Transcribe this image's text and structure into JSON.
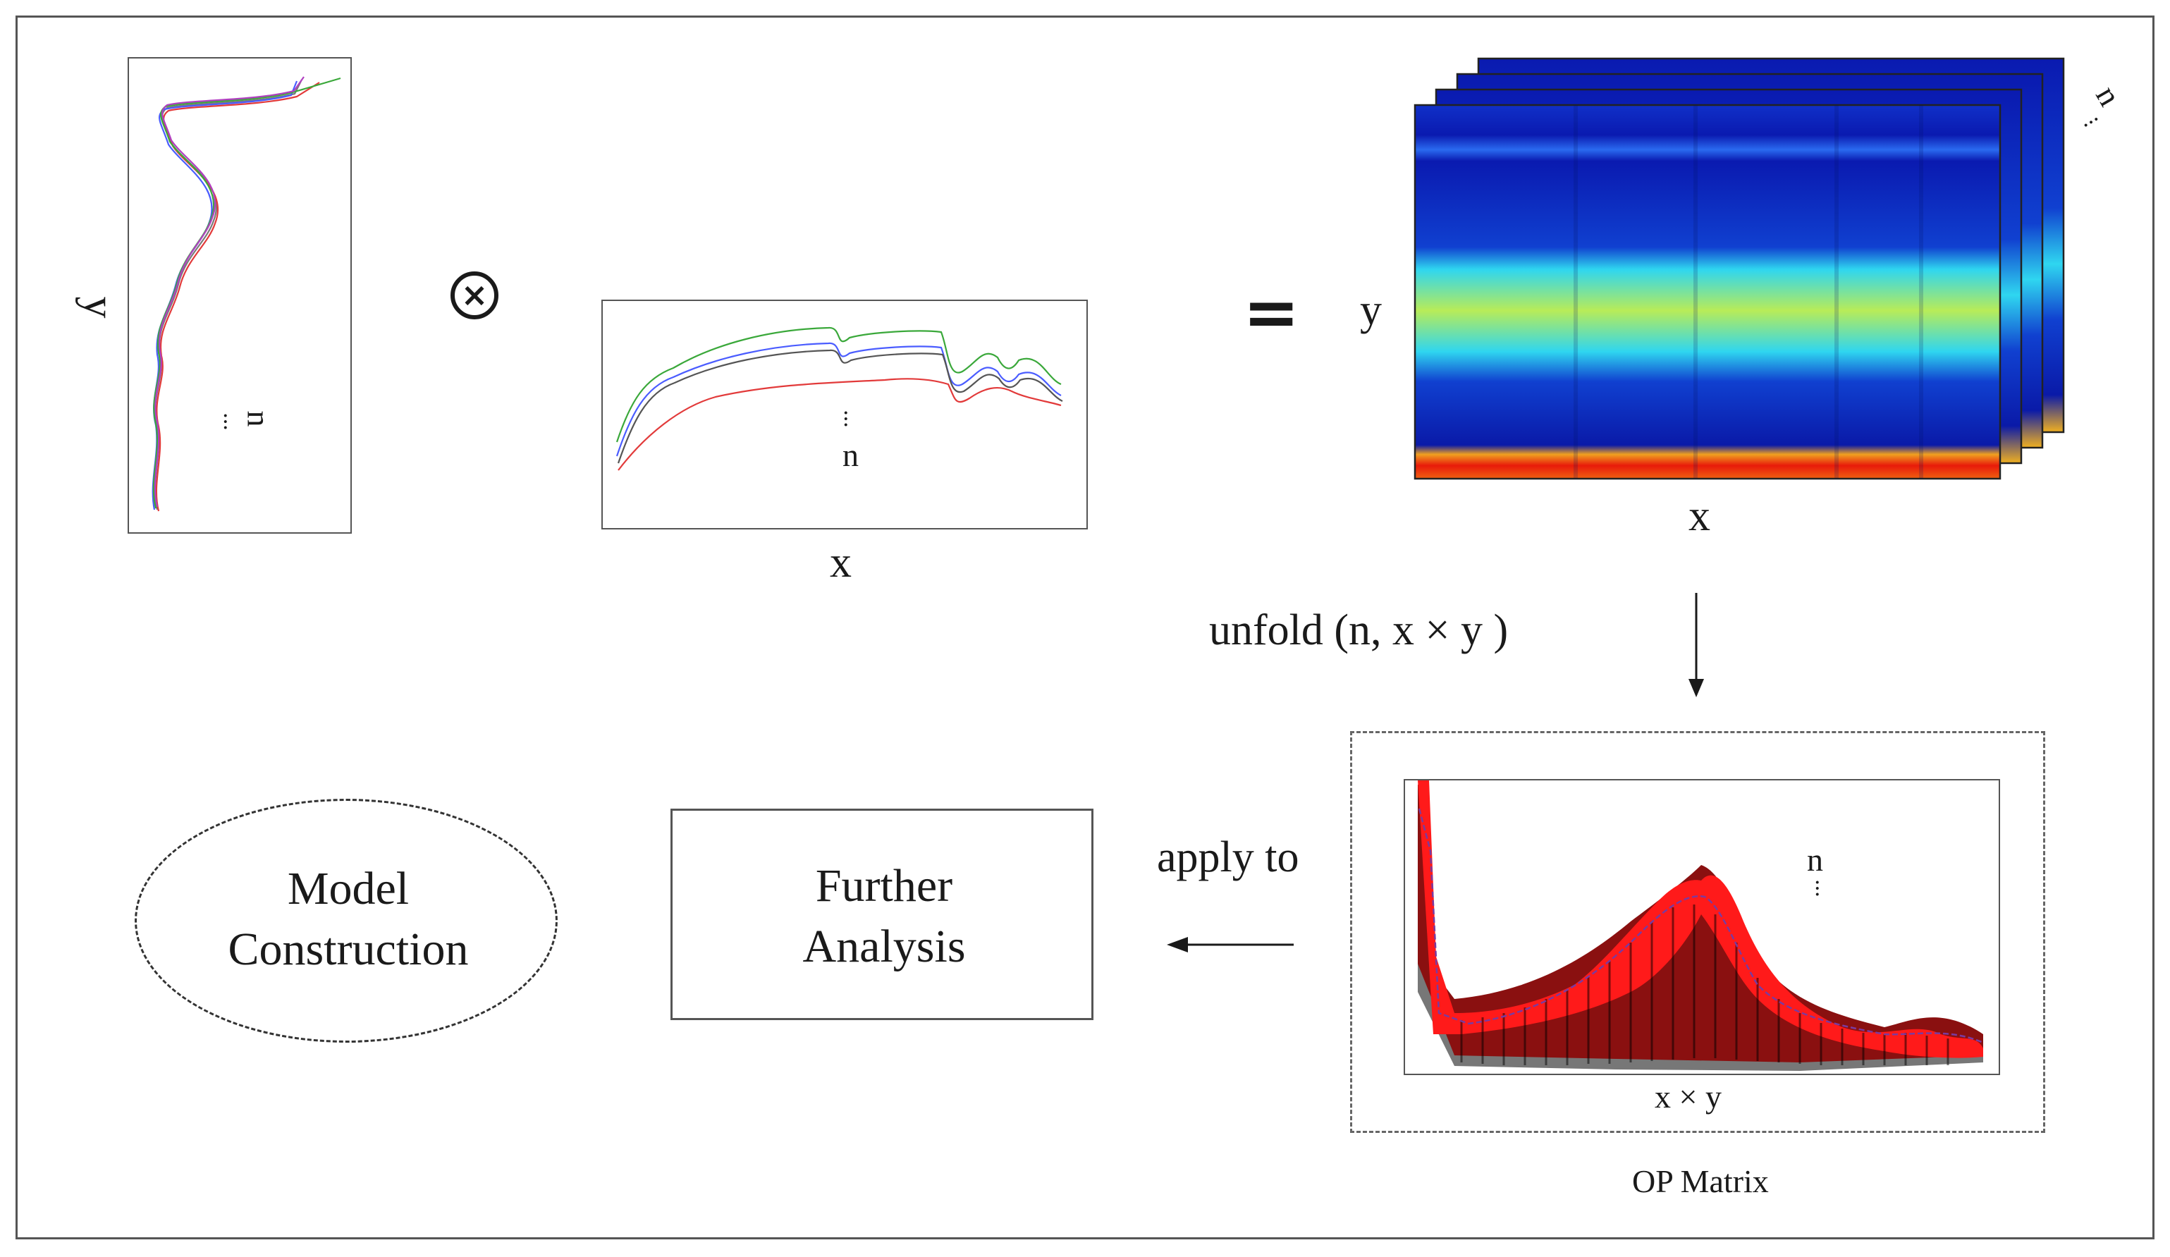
{
  "diagram": {
    "axis_labels": {
      "y_left": "y",
      "x_middle": "x",
      "y_heatmap": "y",
      "x_heatmap": "x",
      "op_x": "x × y"
    },
    "dimension_labels": {
      "n_left": "n",
      "n_middle": "n",
      "n_heatmap": "n",
      "n_op": "n",
      "ellipsis": "..."
    },
    "operators": {
      "tensor_product": "⊗",
      "equals": "="
    },
    "unfold_label": "unfold (n, x × y )",
    "apply_label": "apply to",
    "op_matrix_caption": "OP Matrix",
    "further_analysis": [
      "Further",
      "Analysis"
    ],
    "model_construction": [
      "Model",
      "Construction"
    ],
    "colors": {
      "border": "#555555",
      "heat_dark": "#0a1aa8",
      "heat_mid": "#2fd6f0",
      "heat_peak": "#c8ef4a",
      "heat_hot": "#e81a0a",
      "op_red": "#ff1a1a",
      "op_dark": "#8a1010"
    },
    "icons": {
      "arrow_down": "arrow-down-icon",
      "arrow_left": "arrow-left-icon"
    }
  }
}
